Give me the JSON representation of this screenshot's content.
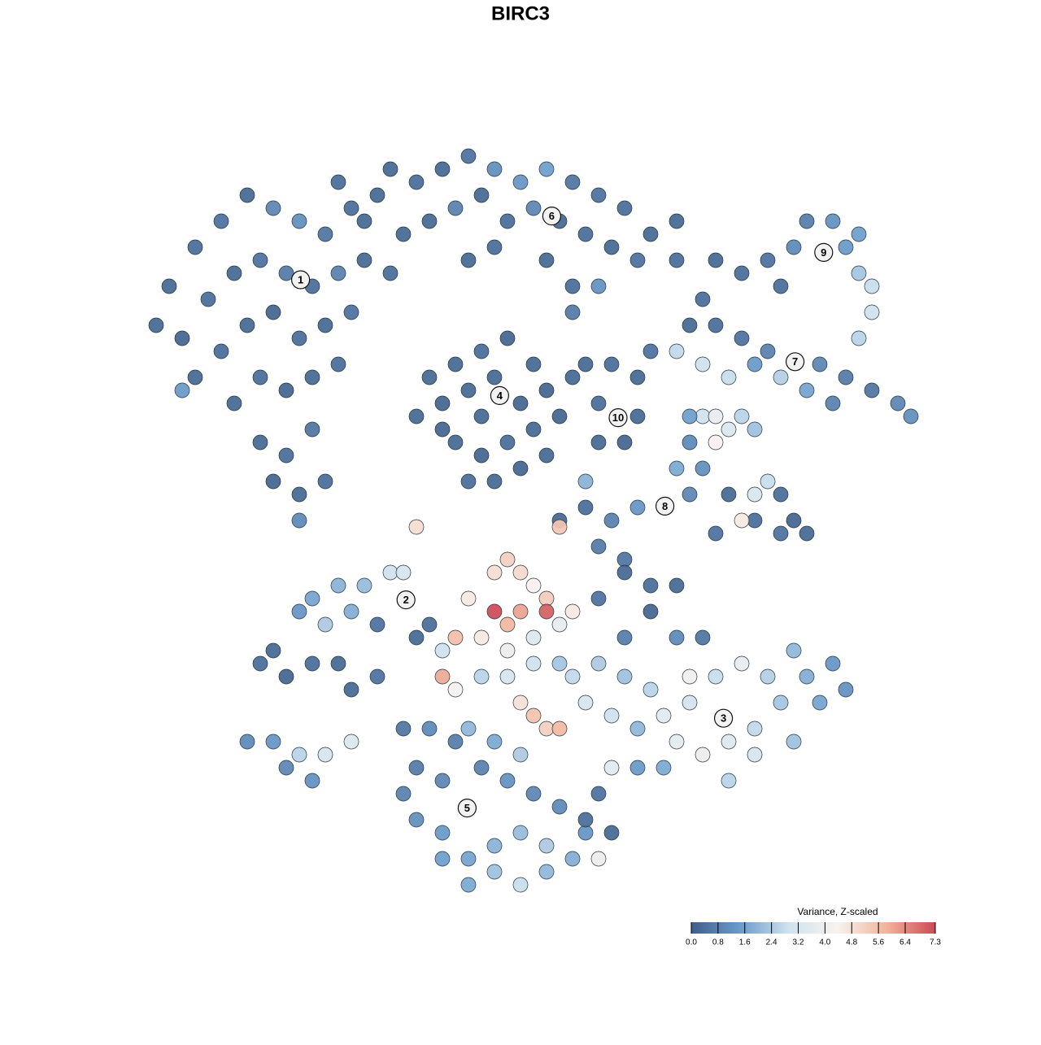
{
  "chart_data": {
    "type": "scatter",
    "title": "BIRC3",
    "xlim": [
      -40,
      40
    ],
    "ylim": [
      -40,
      40
    ],
    "points": [
      [
        -27,
        18,
        0.2
      ],
      [
        -25,
        21,
        0.3
      ],
      [
        -23,
        23,
        0.4
      ],
      [
        -21,
        25,
        0.2
      ],
      [
        -19,
        24,
        0.9
      ],
      [
        -17,
        23,
        1.1
      ],
      [
        -15,
        22,
        0.5
      ],
      [
        -13,
        24,
        0.3
      ],
      [
        -11,
        25,
        0.2
      ],
      [
        -26,
        14,
        0.1
      ],
      [
        -24,
        17,
        0.3
      ],
      [
        -22,
        19,
        0.2
      ],
      [
        -20,
        20,
        0.4
      ],
      [
        -18,
        19,
        0.6
      ],
      [
        -16,
        18,
        0.3
      ],
      [
        -14,
        19,
        0.8
      ],
      [
        -12,
        20,
        0.2
      ],
      [
        -25,
        11,
        0.2
      ],
      [
        -23,
        13,
        0.3
      ],
      [
        -21,
        15,
        0.2
      ],
      [
        -19,
        16,
        0.1
      ],
      [
        -17,
        14,
        0.3
      ],
      [
        -15,
        15,
        0.2
      ],
      [
        -13,
        16,
        0.4
      ],
      [
        -22,
        9,
        0.2
      ],
      [
        -20,
        11,
        0.3
      ],
      [
        -18,
        10,
        0.1
      ],
      [
        -16,
        11,
        0.2
      ],
      [
        -14,
        12,
        0.3
      ],
      [
        -20,
        6,
        0.2
      ],
      [
        -18,
        5,
        0.3
      ],
      [
        -16,
        7,
        0.5
      ],
      [
        -17,
        2,
        0.2
      ],
      [
        -19,
        3,
        0.1
      ],
      [
        -15,
        3,
        0.3
      ],
      [
        -17,
        0,
        1.0
      ],
      [
        -26,
        10,
        1.4
      ],
      [
        -28,
        15,
        0.2
      ],
      [
        -10,
        19,
        0.3
      ],
      [
        -9,
        22,
        0.2
      ],
      [
        -8,
        26,
        0.3
      ],
      [
        -6,
        27,
        0.2
      ],
      [
        -4,
        28,
        0.4
      ],
      [
        -2,
        27,
        1.1
      ],
      [
        0,
        26,
        1.3
      ],
      [
        2,
        27,
        1.5
      ],
      [
        4,
        26,
        0.5
      ],
      [
        6,
        25,
        0.4
      ],
      [
        8,
        24,
        0.3
      ],
      [
        10,
        22,
        0.2
      ],
      [
        12,
        20,
        0.3
      ],
      [
        -7,
        23,
        0.2
      ],
      [
        -5,
        24,
        0.8
      ],
      [
        -3,
        25,
        0.2
      ],
      [
        -1,
        23,
        0.3
      ],
      [
        1,
        24,
        0.9
      ],
      [
        3,
        23,
        0.2
      ],
      [
        5,
        22,
        0.3
      ],
      [
        7,
        21,
        0.2
      ],
      [
        9,
        20,
        0.4
      ],
      [
        -4,
        20,
        0.2
      ],
      [
        -2,
        21,
        0.3
      ],
      [
        2,
        20,
        0.2
      ],
      [
        4,
        18,
        0.3
      ],
      [
        6,
        18,
        1.2
      ],
      [
        4,
        16,
        0.6
      ],
      [
        -12,
        23,
        0.2
      ],
      [
        -14,
        26,
        0.3
      ],
      [
        -10,
        27,
        0.2
      ],
      [
        12,
        23,
        0.2
      ],
      [
        14,
        17,
        0.3
      ],
      [
        13,
        15,
        0.2
      ],
      [
        -1.6,
        9.6,
        0.1
      ],
      [
        -4,
        10,
        0.2
      ],
      [
        -6,
        9,
        0.1
      ],
      [
        -7,
        11,
        0.2
      ],
      [
        -5,
        12,
        0.2
      ],
      [
        -3,
        13,
        0.3
      ],
      [
        -1,
        14,
        0.1
      ],
      [
        1,
        12,
        0.2
      ],
      [
        2,
        10,
        0.1
      ],
      [
        1,
        7,
        0.2
      ],
      [
        -1,
        6,
        0.3
      ],
      [
        -3,
        5,
        0.1
      ],
      [
        -5,
        6,
        0.2
      ],
      [
        -6,
        7,
        0.1
      ],
      [
        -3,
        8,
        0.2
      ],
      [
        0,
        9,
        0.1
      ],
      [
        -2,
        3,
        0.2
      ],
      [
        -4,
        3,
        0.3
      ],
      [
        0,
        4,
        0.1
      ],
      [
        2,
        5,
        0.2
      ],
      [
        3,
        8,
        0.1
      ],
      [
        -8,
        8,
        0.2
      ],
      [
        -2,
        11,
        0.2
      ],
      [
        7.5,
        7.9,
        0.2
      ],
      [
        6,
        9,
        0.3
      ],
      [
        9,
        8,
        0.2
      ],
      [
        8,
        6,
        0.1
      ],
      [
        6,
        6,
        0.2
      ],
      [
        5,
        12,
        0.2
      ],
      [
        7,
        12,
        0.3
      ],
      [
        9,
        11,
        0.2
      ],
      [
        10,
        13,
        0.4
      ],
      [
        4,
        11,
        0.2
      ],
      [
        23.3,
        20.6,
        0.8
      ],
      [
        21,
        21,
        1.0
      ],
      [
        19,
        20,
        0.4
      ],
      [
        17,
        19,
        0.3
      ],
      [
        15,
        20,
        0.2
      ],
      [
        25,
        21,
        1.4
      ],
      [
        26,
        19,
        2.3
      ],
      [
        27,
        18,
        2.8
      ],
      [
        26,
        22,
        1.5
      ],
      [
        22,
        23,
        0.7
      ],
      [
        24,
        23,
        1.2
      ],
      [
        27,
        16,
        2.9
      ],
      [
        26,
        14,
        2.6
      ],
      [
        20,
        18,
        0.3
      ],
      [
        21.1,
        12.2,
        1.0
      ],
      [
        19,
        13,
        0.8
      ],
      [
        17,
        14,
        0.4
      ],
      [
        15,
        15,
        0.3
      ],
      [
        23,
        12,
        0.9
      ],
      [
        25,
        11,
        0.6
      ],
      [
        27,
        10,
        0.5
      ],
      [
        29,
        9,
        0.9
      ],
      [
        30,
        8,
        1.1
      ],
      [
        24,
        9,
        0.8
      ],
      [
        22,
        10,
        1.6
      ],
      [
        20,
        11,
        2.5
      ],
      [
        18,
        12,
        1.4
      ],
      [
        16,
        11,
        2.8
      ],
      [
        14,
        12,
        2.9
      ],
      [
        12,
        13,
        2.7
      ],
      [
        11.1,
        1.1,
        0.6
      ],
      [
        9,
        1,
        1.3
      ],
      [
        7,
        0,
        0.8
      ],
      [
        5,
        1,
        0.3
      ],
      [
        3,
        0,
        0.2
      ],
      [
        13,
        2,
        0.9
      ],
      [
        14,
        4,
        1.1
      ],
      [
        13,
        6,
        1.0
      ],
      [
        14,
        8,
        2.9
      ],
      [
        15,
        8,
        3.8
      ],
      [
        16,
        7,
        3.3
      ],
      [
        17,
        8,
        2.6
      ],
      [
        18,
        7,
        2.2
      ],
      [
        13,
        8,
        1.5
      ],
      [
        15,
        6,
        4.4
      ],
      [
        12,
        4,
        1.7
      ],
      [
        16,
        2,
        0.2
      ],
      [
        18,
        0,
        0.3
      ],
      [
        20,
        -1,
        0.4
      ],
      [
        22,
        -1,
        0.2
      ],
      [
        20,
        2,
        0.3
      ],
      [
        18,
        2,
        3.2
      ],
      [
        17,
        0,
        4.6
      ],
      [
        19,
        3,
        2.8
      ],
      [
        21,
        0,
        0.1
      ],
      [
        15,
        -1,
        0.4
      ],
      [
        6,
        -2,
        0.6
      ],
      [
        8,
        -3,
        0.5
      ],
      [
        5,
        3,
        1.9
      ],
      [
        -8.8,
        -6.1,
        1.7
      ],
      [
        -10,
        -4,
        2.9
      ],
      [
        -9,
        -4,
        3.1
      ],
      [
        -12,
        -5,
        2.1
      ],
      [
        -14,
        -5,
        1.9
      ],
      [
        -16,
        -6,
        1.6
      ],
      [
        -17,
        -7,
        1.3
      ],
      [
        -15,
        -8,
        2.4
      ],
      [
        -13,
        -7,
        1.8
      ],
      [
        -11,
        -8,
        0.4
      ],
      [
        -7,
        -8,
        0.3
      ],
      [
        -8,
        -9,
        0.2
      ],
      [
        -19,
        -10,
        0.2
      ],
      [
        -18,
        -12,
        0.1
      ],
      [
        -16,
        -11,
        0.3
      ],
      [
        -14,
        -11,
        0.2
      ],
      [
        -13,
        -13,
        0.2
      ],
      [
        -11,
        -12,
        0.4
      ],
      [
        -20,
        -11,
        0.3
      ],
      [
        -21,
        -17,
        1.0
      ],
      [
        -19,
        -17,
        1.3
      ],
      [
        -18,
        -19,
        0.9
      ],
      [
        -17,
        -18,
        2.6
      ],
      [
        -15,
        -18,
        3.1
      ],
      [
        -16,
        -20,
        1.2
      ],
      [
        -13,
        -17,
        3.3
      ],
      [
        15.6,
        -15.2,
        3.3
      ],
      [
        13,
        -14,
        3.0
      ],
      [
        11,
        -15,
        3.5
      ],
      [
        10,
        -13,
        2.6
      ],
      [
        8,
        -12,
        2.2
      ],
      [
        6,
        -11,
        2.4
      ],
      [
        4,
        -12,
        2.7
      ],
      [
        5,
        -14,
        3.1
      ],
      [
        7,
        -15,
        2.9
      ],
      [
        9,
        -16,
        2.0
      ],
      [
        12,
        -17,
        3.7
      ],
      [
        14,
        -18,
        3.9
      ],
      [
        16,
        -17,
        3.4
      ],
      [
        18,
        -16,
        2.7
      ],
      [
        20,
        -14,
        2.3
      ],
      [
        22,
        -12,
        1.8
      ],
      [
        24,
        -11,
        1.3
      ],
      [
        21,
        -10,
        2.0
      ],
      [
        19,
        -12,
        2.5
      ],
      [
        17,
        -11,
        3.8
      ],
      [
        15,
        -12,
        2.8
      ],
      [
        13,
        -12,
        4.1
      ],
      [
        18,
        -18,
        3.1
      ],
      [
        16,
        -20,
        2.6
      ],
      [
        11,
        -19,
        1.7
      ],
      [
        9,
        -19,
        1.4
      ],
      [
        21,
        -17,
        2.2
      ],
      [
        23,
        -14,
        1.6
      ],
      [
        25,
        -13,
        1.2
      ],
      [
        14,
        -9,
        0.5
      ],
      [
        12,
        -9,
        1.0
      ],
      [
        8,
        -9,
        0.7
      ],
      [
        6,
        -6,
        0.4
      ],
      [
        8,
        -4,
        0.2
      ],
      [
        10,
        -5,
        0.3
      ],
      [
        12,
        -5,
        0.2
      ],
      [
        10,
        -7,
        0.1
      ],
      [
        7,
        -19,
        3.5
      ],
      [
        -3,
        -12,
        2.6
      ],
      [
        -1,
        -12,
        3.1
      ],
      [
        1,
        -11,
        2.9
      ],
      [
        3,
        -11,
        2.3
      ],
      [
        -4,
        -16,
        2.0
      ],
      [
        -2,
        -17,
        1.7
      ],
      [
        0,
        -18,
        2.4
      ],
      [
        -4.1,
        -22.1,
        1.2
      ],
      [
        -6,
        -20,
        0.9
      ],
      [
        -8,
        -19,
        0.6
      ],
      [
        -9,
        -21,
        0.8
      ],
      [
        -8,
        -23,
        1.1
      ],
      [
        -6,
        -24,
        1.4
      ],
      [
        -4,
        -26,
        1.6
      ],
      [
        -2,
        -25,
        1.9
      ],
      [
        0,
        -24,
        2.1
      ],
      [
        2,
        -25,
        2.4
      ],
      [
        4,
        -26,
        1.8
      ],
      [
        5,
        -24,
        1.3
      ],
      [
        3,
        -22,
        1.0
      ],
      [
        1,
        -21,
        0.9
      ],
      [
        -1,
        -20,
        1.2
      ],
      [
        -3,
        -19,
        0.8
      ],
      [
        -5,
        -17,
        0.7
      ],
      [
        -7,
        -16,
        1.0
      ],
      [
        -9,
        -16,
        0.5
      ],
      [
        -2,
        -27,
        2.2
      ],
      [
        0,
        -28,
        2.8
      ],
      [
        2,
        -27,
        2.0
      ],
      [
        -4,
        -28,
        1.7
      ],
      [
        6,
        -21,
        0.4
      ],
      [
        5,
        -23,
        0.3
      ],
      [
        -6,
        -26,
        1.5
      ],
      [
        6,
        -26,
        3.9
      ],
      [
        7,
        -24,
        0.2
      ],
      [
        -2,
        -4,
        4.9
      ],
      [
        -1,
        -3,
        5.2
      ],
      [
        0,
        -4,
        5.0
      ],
      [
        1,
        -5,
        4.4
      ],
      [
        2,
        -6,
        5.3
      ],
      [
        -2,
        -7,
        7.3
      ],
      [
        0,
        -7,
        6.1
      ],
      [
        2,
        -7,
        7.0
      ],
      [
        -1,
        -8,
        5.8
      ],
      [
        3,
        -8,
        3.8
      ],
      [
        -3,
        -9,
        4.6
      ],
      [
        -1,
        -10,
        3.9
      ],
      [
        1,
        -9,
        3.4
      ],
      [
        -4,
        -6,
        4.6
      ],
      [
        -5,
        -9,
        5.6
      ],
      [
        -6,
        -10,
        2.9
      ],
      [
        -5,
        -13,
        4.3
      ],
      [
        -6,
        -12,
        6.0
      ],
      [
        1,
        -15,
        5.5
      ],
      [
        2,
        -16,
        5.2
      ],
      [
        3,
        -16,
        5.7
      ],
      [
        0,
        -14,
        4.8
      ],
      [
        -8,
        -0.5,
        4.9
      ],
      [
        3,
        -0.5,
        5.4
      ],
      [
        4,
        -7,
        4.6
      ]
    ],
    "cluster_labels": [
      {
        "text": "1",
        "x": -16.9,
        "y": 18.5
      },
      {
        "text": "2",
        "x": -8.8,
        "y": -6.1
      },
      {
        "text": "3",
        "x": 15.6,
        "y": -15.2
      },
      {
        "text": "4",
        "x": -1.6,
        "y": 9.6
      },
      {
        "text": "5",
        "x": -4.1,
        "y": -22.1
      },
      {
        "text": "6",
        "x": 2.4,
        "y": 23.4
      },
      {
        "text": "7",
        "x": 21.1,
        "y": 12.2
      },
      {
        "text": "8",
        "x": 11.1,
        "y": 1.1
      },
      {
        "text": "9",
        "x": 23.3,
        "y": 20.6
      },
      {
        "text": "10",
        "x": 7.5,
        "y": 7.9
      }
    ],
    "colorbar": {
      "title": "Variance, Z-scaled",
      "lim": [
        0,
        7.3
      ],
      "ticks": [
        {
          "value": 0,
          "label": "0.0"
        },
        0.8,
        1.6,
        2.4,
        3.2,
        {
          "value": 4,
          "label": "4.0"
        },
        4.8,
        5.6,
        6.4,
        7.3
      ],
      "colors": [
        "#3f5f8a",
        "#6a9bcb",
        "#cfe3ef",
        "#f8f2ee",
        "#f1b49b",
        "#cc4a55"
      ]
    }
  }
}
